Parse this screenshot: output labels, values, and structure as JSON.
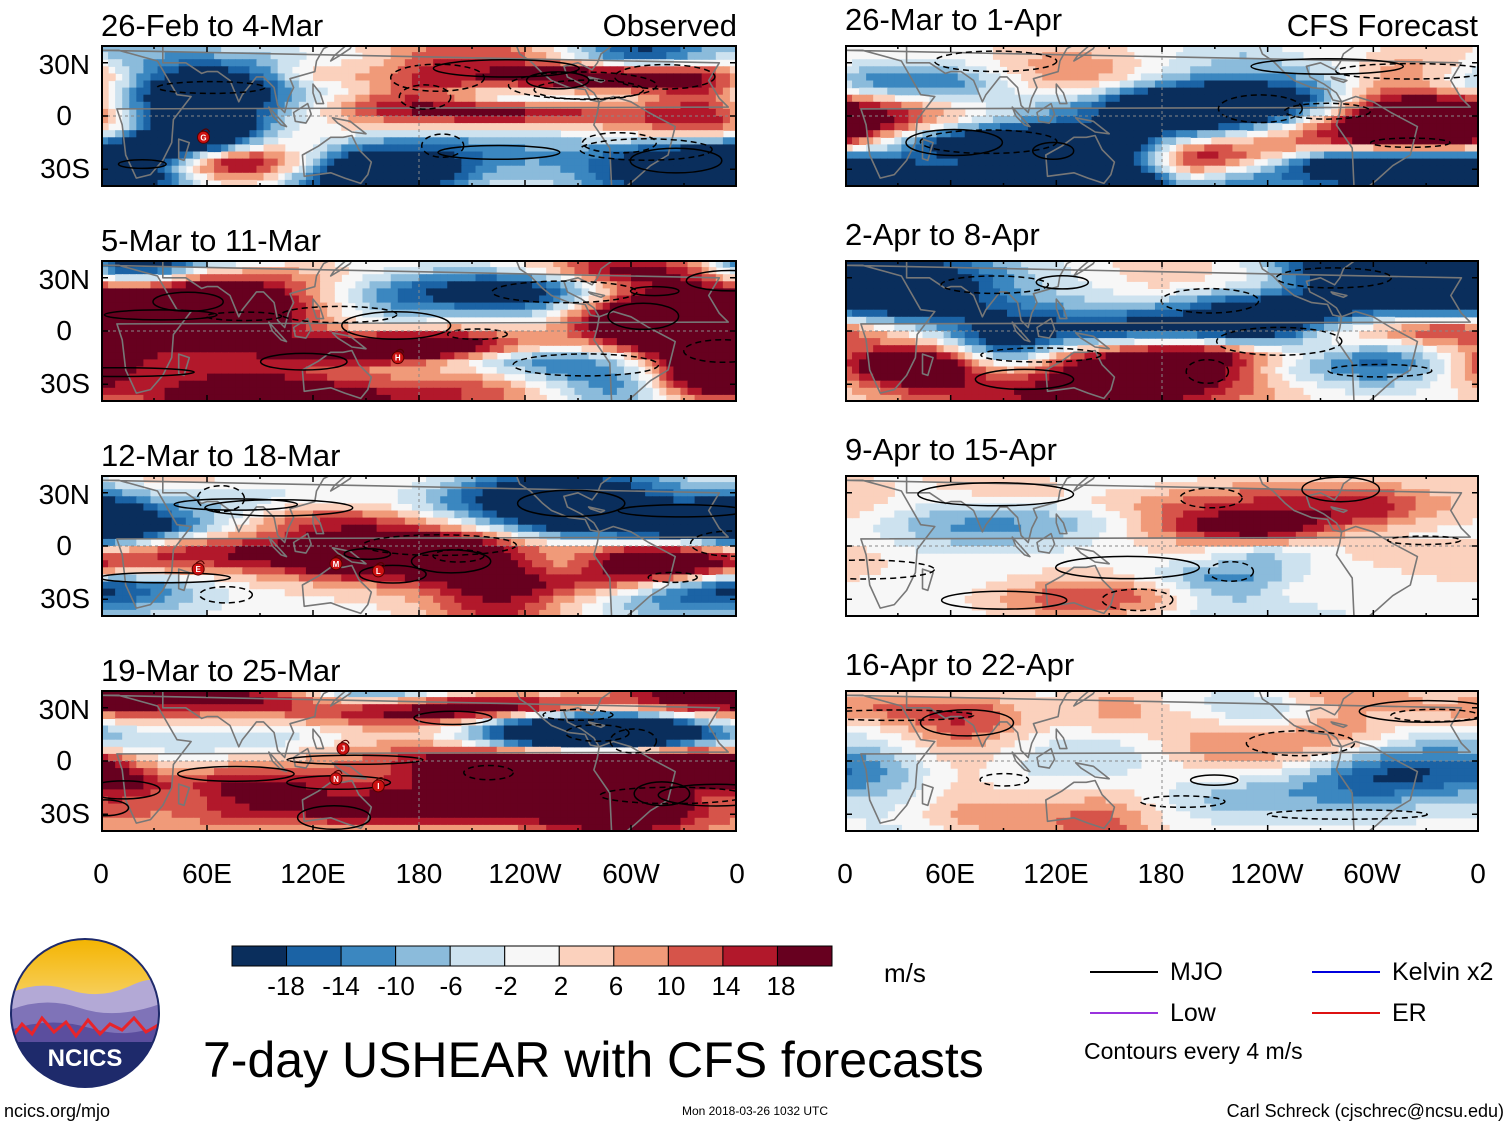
{
  "figure": {
    "title": "7-day USHEAR with CFS forecasts",
    "observed_label": "Observed",
    "forecast_label": "CFS Forecast",
    "footer_left": "ncics.org/mjo",
    "footer_center": "Mon 2018-03-26 1032 UTC",
    "footer_right": "Carl Schreck (cjschrec@ncsu.edu)",
    "logo_text": "NCICS"
  },
  "chart_data": {
    "type": "heatmap",
    "variable": "USHEAR",
    "units": "m/s",
    "contour_note": "Contours every 4 m/s",
    "y_ticks": [
      "30N",
      "0",
      "30S"
    ],
    "x_ticks": [
      "0",
      "60E",
      "120E",
      "180",
      "120W",
      "60W",
      "0"
    ],
    "x_range_deg": [
      0,
      360
    ],
    "y_range_deg": [
      -40,
      40
    ],
    "panels": [
      {
        "label": "26-Feb to 4-Mar",
        "kind": "observed",
        "storms": [
          {
            "lon": 58,
            "lat": -12,
            "letter": "G"
          }
        ]
      },
      {
        "label": "5-Mar to 11-Mar",
        "kind": "observed",
        "storms": [
          {
            "lon": 168,
            "lat": -15,
            "letter": "H"
          }
        ]
      },
      {
        "label": "12-Mar to 18-Mar",
        "kind": "observed",
        "storms": [
          {
            "lon": 55,
            "lat": -13,
            "letter": "E"
          },
          {
            "lon": 133,
            "lat": -10,
            "letter": "M"
          },
          {
            "lon": 157,
            "lat": -14,
            "letter": "L"
          }
        ]
      },
      {
        "label": "19-Mar to 25-Mar",
        "kind": "observed",
        "storms": [
          {
            "lon": 137,
            "lat": 7,
            "letter": "J"
          },
          {
            "lon": 133,
            "lat": -10,
            "letter": "N"
          },
          {
            "lon": 157,
            "lat": -14,
            "letter": "I"
          }
        ]
      },
      {
        "label": "26-Mar to 1-Apr",
        "kind": "forecast",
        "storms": []
      },
      {
        "label": "2-Apr to 8-Apr",
        "kind": "forecast",
        "storms": []
      },
      {
        "label": "9-Apr to 15-Apr",
        "kind": "forecast",
        "storms": []
      },
      {
        "label": "16-Apr to 22-Apr",
        "kind": "forecast",
        "storms": []
      }
    ],
    "colorbar": {
      "ticks": [
        "-18",
        "-14",
        "-10",
        "-6",
        "-2",
        "2",
        "6",
        "10",
        "14",
        "18"
      ],
      "colors": [
        "#0a2e5c",
        "#1b63a5",
        "#3b87c0",
        "#8bbbdb",
        "#cde2ef",
        "#f7f7f7",
        "#fbd1bd",
        "#f09a79",
        "#d6544a",
        "#b2182b",
        "#67001f"
      ]
    },
    "legend": [
      {
        "label": "MJO",
        "color": "#000000"
      },
      {
        "label": "Kelvin x2",
        "color": "#0000dd"
      },
      {
        "label": "Low",
        "color": "#9933dd"
      },
      {
        "label": "ER",
        "color": "#dd1111"
      }
    ]
  }
}
